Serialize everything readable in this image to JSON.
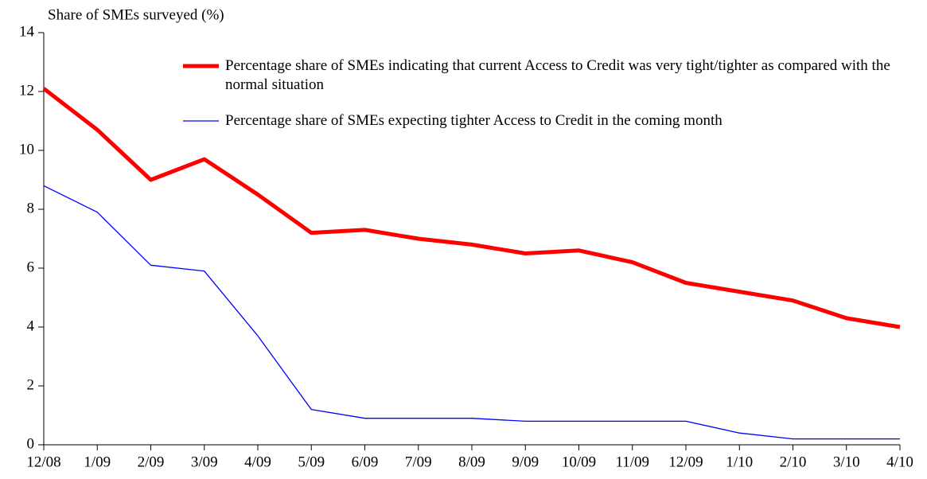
{
  "chart_data": {
    "type": "line",
    "y_axis_label": "Share of SMEs surveyed (%)",
    "categories": [
      "12/08",
      "1/09",
      "2/09",
      "3/09",
      "4/09",
      "5/09",
      "6/09",
      "7/09",
      "8/09",
      "9/09",
      "10/09",
      "11/09",
      "12/09",
      "1/10",
      "2/10",
      "3/10",
      "4/10"
    ],
    "series": [
      {
        "name": "Percentage share of SMEs indicating that current Access to Credit was very tight/tighter as compared with the normal situation",
        "color": "#ff0000",
        "width": 5,
        "values": [
          12.1,
          10.7,
          9.0,
          9.7,
          8.5,
          7.2,
          7.3,
          7.0,
          6.8,
          6.5,
          6.6,
          6.2,
          5.5,
          5.2,
          4.9,
          4.3,
          4.0
        ]
      },
      {
        "name": "Percentage share of SMEs expecting tighter Access to Credit in the coming month",
        "color": "#0000ff",
        "width": 1.3,
        "values": [
          8.8,
          7.9,
          6.1,
          5.9,
          3.7,
          1.2,
          0.9,
          0.9,
          0.9,
          0.8,
          0.8,
          0.8,
          0.8,
          0.4,
          0.2,
          0.2,
          0.2
        ]
      }
    ],
    "ylim": [
      0,
      14
    ],
    "yticks": [
      0,
      2,
      4,
      6,
      8,
      10,
      12,
      14
    ],
    "grid": false,
    "legend": "top-right"
  }
}
